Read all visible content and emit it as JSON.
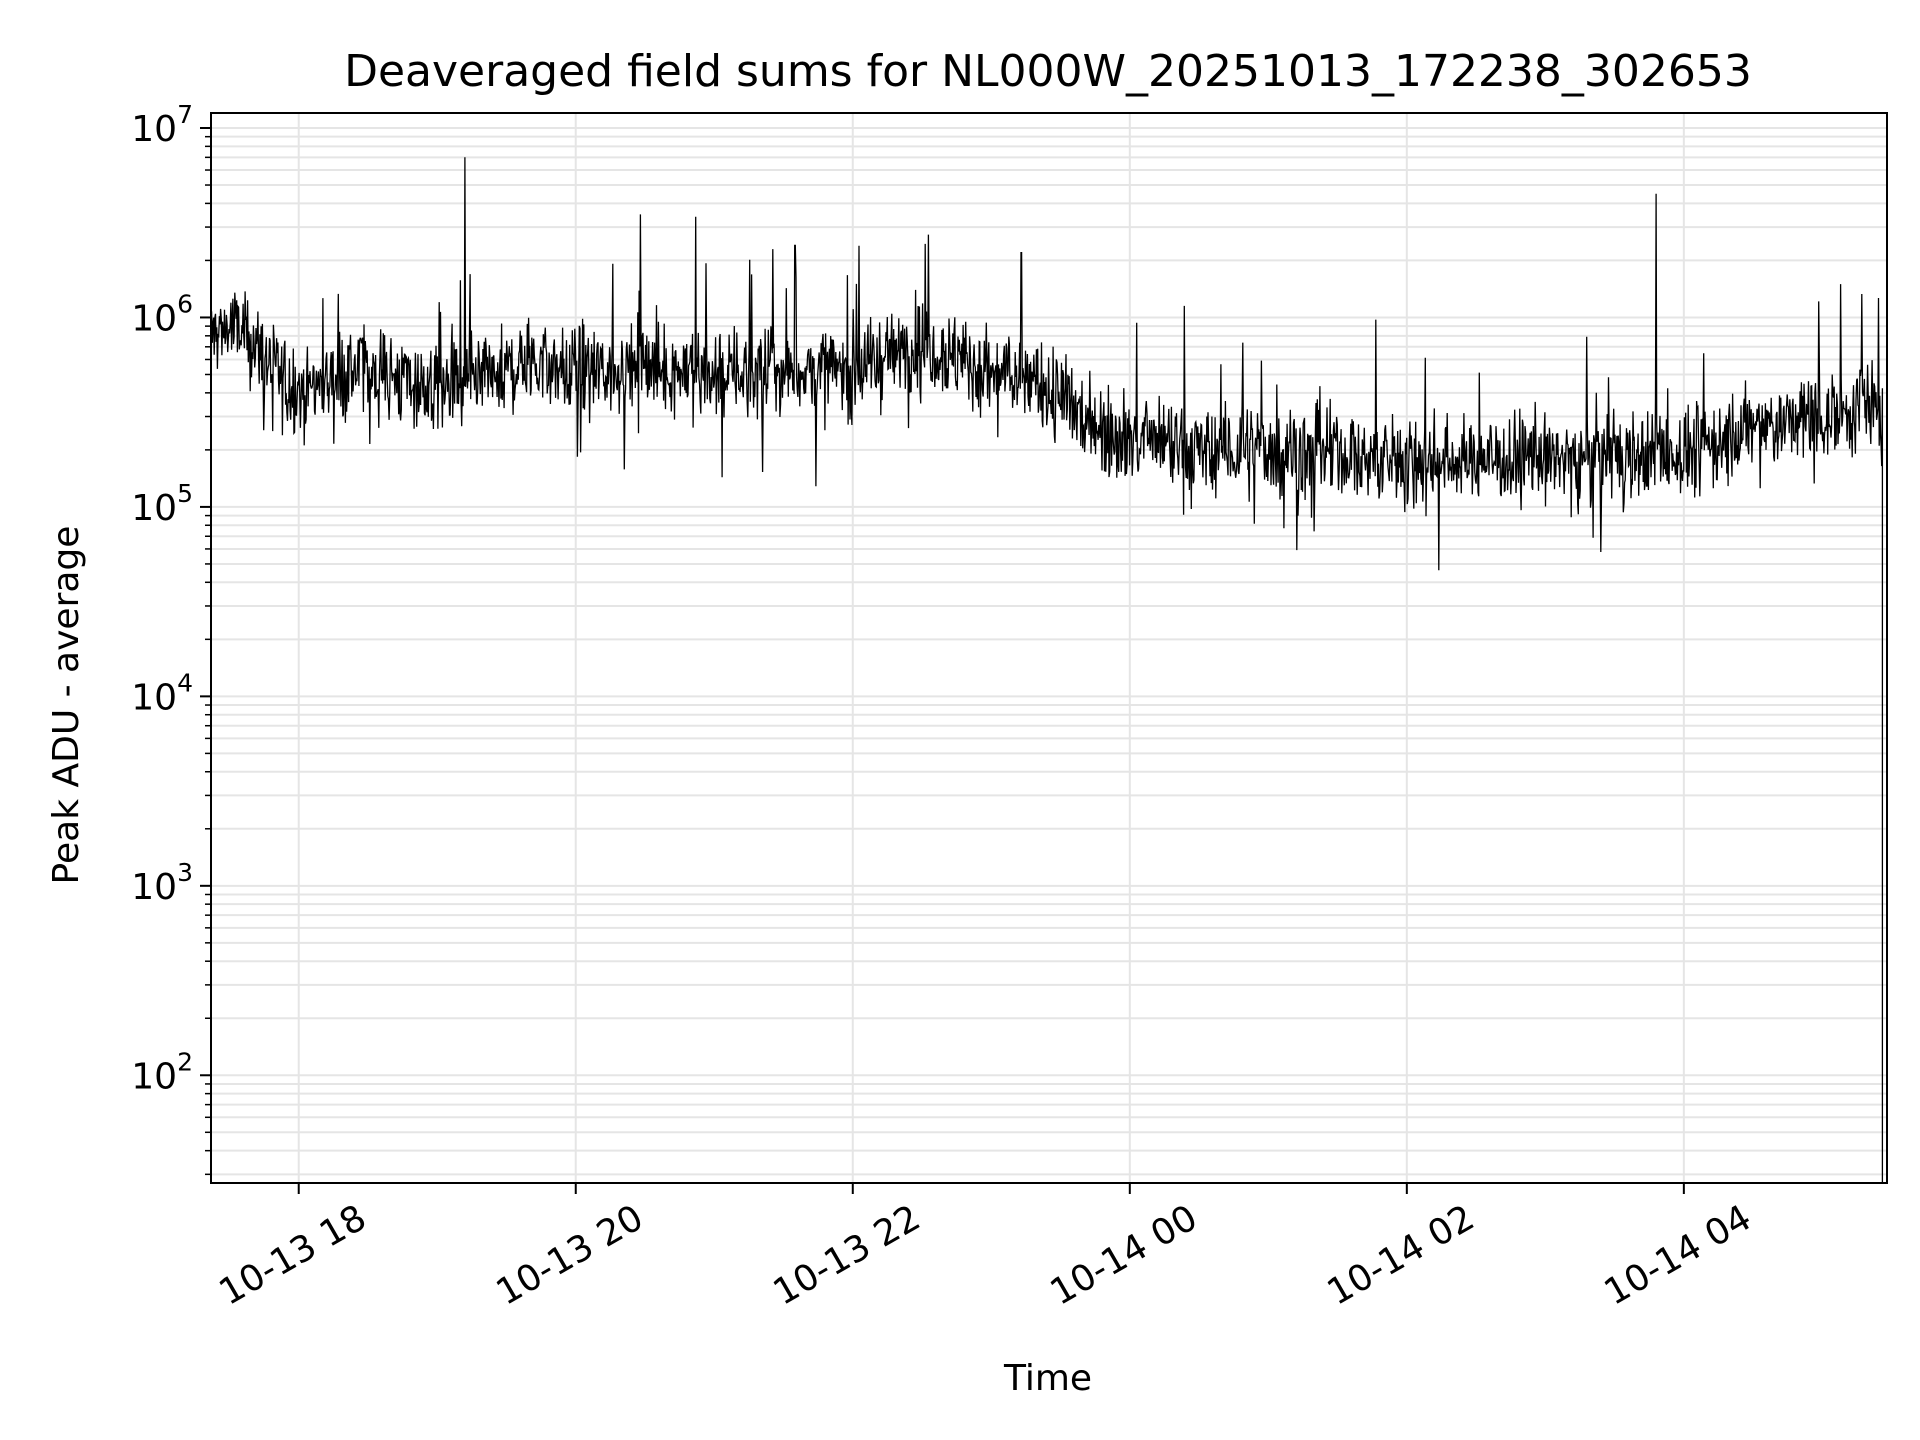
{
  "chart_data": {
    "type": "line",
    "title": "Deaveraged field sums for NL000W_20251013_172238_302653",
    "xlabel": "Time",
    "ylabel": "Peak ADU - average",
    "y_scale": "log",
    "ylim": [
      27,
      12000000
    ],
    "xlim": [
      "2025-10-13 17:22",
      "2025-10-14 05:28"
    ],
    "grid": true,
    "line_color": "#000000",
    "grid_color": "#e5e5e5",
    "x_ticks": [
      {
        "value": "2025-10-13 18:00",
        "label": "10-13 18"
      },
      {
        "value": "2025-10-13 20:00",
        "label": "10-13 20"
      },
      {
        "value": "2025-10-13 22:00",
        "label": "10-13 22"
      },
      {
        "value": "2025-10-14 00:00",
        "label": "10-14 00"
      },
      {
        "value": "2025-10-14 02:00",
        "label": "10-14 02"
      },
      {
        "value": "2025-10-14 04:00",
        "label": "10-14 04"
      }
    ],
    "y_ticks": [
      {
        "value": 100,
        "base": "10",
        "exp": "2"
      },
      {
        "value": 1000,
        "base": "10",
        "exp": "3"
      },
      {
        "value": 10000,
        "base": "10",
        "exp": "4"
      },
      {
        "value": 100000,
        "base": "10",
        "exp": "5"
      },
      {
        "value": 1000000,
        "base": "10",
        "exp": "6"
      },
      {
        "value": 10000000,
        "base": "10",
        "exp": "7"
      }
    ],
    "series": [
      {
        "points": [
          [
            "2025-10-13 17:22",
            800000
          ],
          [
            "2025-10-13 17:30",
            900000
          ],
          [
            "2025-10-13 17:40",
            750000
          ],
          [
            "2025-10-13 17:50",
            500000
          ],
          [
            "2025-10-13 18:00",
            420000
          ],
          [
            "2025-10-13 18:30",
            550000
          ],
          [
            "2025-10-13 19:00",
            400000
          ],
          [
            "2025-10-13 19:20",
            450000
          ],
          [
            "2025-10-13 19:40",
            600000
          ],
          [
            "2025-10-13 20:00",
            500000
          ],
          [
            "2025-10-13 20:30",
            550000
          ],
          [
            "2025-10-13 21:00",
            500000
          ],
          [
            "2025-10-13 21:30",
            520000
          ],
          [
            "2025-10-13 22:00",
            520000
          ],
          [
            "2025-10-13 22:30",
            750000
          ],
          [
            "2025-10-13 23:00",
            500000
          ],
          [
            "2025-10-13 23:20",
            450000
          ],
          [
            "2025-10-13 23:40",
            300000
          ],
          [
            "2025-10-14 00:00",
            230000
          ],
          [
            "2025-10-14 00:30",
            190000
          ],
          [
            "2025-10-14 01:00",
            200000
          ],
          [
            "2025-10-14 01:30",
            190000
          ],
          [
            "2025-10-14 02:00",
            170000
          ],
          [
            "2025-10-14 02:30",
            180000
          ],
          [
            "2025-10-14 03:00",
            180000
          ],
          [
            "2025-10-14 03:30",
            185000
          ],
          [
            "2025-10-14 04:00",
            190000
          ],
          [
            "2025-10-14 04:30",
            260000
          ],
          [
            "2025-10-14 05:00",
            300000
          ],
          [
            "2025-10-14 05:15",
            350000
          ],
          [
            "2025-10-14 05:25",
            330000
          ]
        ],
        "spikes": [
          [
            "2025-10-13 19:12",
            7000000
          ],
          [
            "2025-10-13 20:28",
            3500000
          ],
          [
            "2025-10-13 20:52",
            3400000
          ],
          [
            "2025-10-13 21:35",
            2400000
          ],
          [
            "2025-10-13 23:13",
            2200000
          ],
          [
            "2025-10-14 03:48",
            4500000
          ],
          [
            "2025-10-14 05:08",
            1500000
          ]
        ],
        "drop": [
          "2025-10-14 05:26",
          27
        ]
      }
    ]
  }
}
